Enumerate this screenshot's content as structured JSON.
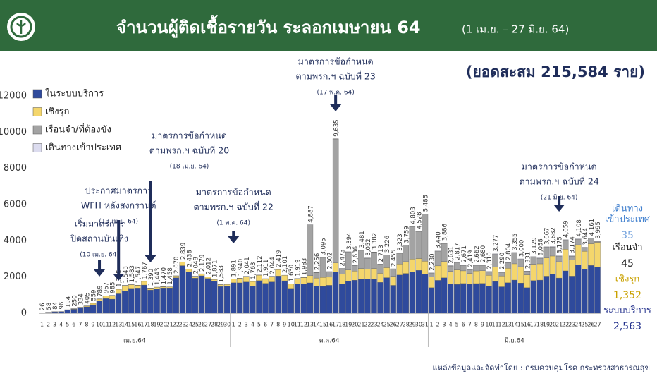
{
  "chart_data": {
    "type": "stacked-bar",
    "title": "จำนวนผู้ติดเชื้อรายวัน ระลอกเมษายน 64",
    "subtitle": "(1 เม.ย. – 27 มิ.ย. 64)",
    "summary": "(ยอดสะสม 215,584 ราย)",
    "source": "แหล่งข้อมูลและจัดทำโดย : กรมควบคุมโรค กระทรวงสาธารณสุข",
    "ylim": [
      0,
      12000
    ],
    "yticks": [
      0,
      2000,
      4000,
      6000,
      8000,
      10000,
      12000
    ],
    "legend": "top-left",
    "months": [
      {
        "label": "เม.ย.64",
        "days": [
          1,
          2,
          3,
          4,
          5,
          6,
          7,
          8,
          9,
          10,
          11,
          12,
          13,
          14,
          15,
          16,
          17,
          18,
          19,
          20,
          21,
          22,
          23,
          24,
          25,
          26,
          27,
          28,
          29,
          30
        ]
      },
      {
        "label": "พ.ค.64",
        "days": [
          1,
          2,
          3,
          4,
          5,
          6,
          7,
          8,
          9,
          10,
          11,
          12,
          13,
          14,
          15,
          16,
          17,
          18,
          19,
          20,
          21,
          22,
          23,
          24,
          25,
          26,
          27,
          28,
          29,
          30,
          31
        ]
      },
      {
        "label": "มิ.ย.64",
        "days": [
          1,
          2,
          3,
          4,
          5,
          6,
          7,
          8,
          9,
          10,
          11,
          12,
          13,
          14,
          15,
          16,
          17,
          18,
          19,
          20,
          21,
          22,
          23,
          24,
          25,
          26,
          27
        ]
      }
    ],
    "series": [
      {
        "name": "ในระบบบริการ",
        "color": "#2f4a9c",
        "values": [
          21,
          48,
          76,
          90,
          184,
          218,
          296,
          355,
          467,
          681,
          807,
          777,
          1073,
          1233,
          1375,
          1391,
          1557,
          1282,
          1351,
          1400,
          1400,
          1960,
          2627,
          2280,
          1938,
          2067,
          1922,
          1783,
          1477,
          1512,
          1681,
          1678,
          1726,
          1503,
          1800,
          1651,
          1729,
          2057,
          1791,
          1372,
          1607,
          1618,
          1677,
          1494,
          1480,
          1542,
          2273,
          1608,
          1784,
          1824,
          1871,
          1887,
          1870,
          1703,
          1964,
          1540,
          2113,
          2197,
          2288,
          2368,
          2173,
          1410,
          1815,
          1956,
          1611,
          1592,
          1641,
          1599,
          1637,
          1650,
          1490,
          1752,
          1460,
          1684,
          1830,
          1670,
          1411,
          1804,
          1828,
          2047,
          2157,
          1945,
          2339,
          2049,
          2678,
          2424,
          2636,
          2563
        ]
      },
      {
        "name": "เชิงรุก",
        "color": "#f4d66c",
        "values": [
          0,
          0,
          0,
          0,
          0,
          20,
          30,
          40,
          80,
          100,
          150,
          200,
          250,
          300,
          200,
          150,
          200,
          100,
          80,
          60,
          50,
          100,
          200,
          150,
          100,
          100,
          80,
          80,
          100,
          80,
          200,
          250,
          300,
          250,
          300,
          250,
          300,
          350,
          300,
          250,
          300,
          350,
          400,
          450,
          500,
          450,
          500,
          550,
          600,
          500,
          600,
          550,
          600,
          500,
          550,
          500,
          600,
          650,
          700,
          650,
          700,
          600,
          800,
          900,
          700,
          800,
          700,
          600,
          700,
          700,
          600,
          800,
          600,
          800,
          900,
          900,
          700,
          900,
          900,
          1000,
          1000,
          900,
          1200,
          900,
          1100,
          1000,
          1200,
          1352
        ]
      },
      {
        "name": "เรือนจำ/ที่ต้องขัง",
        "color": "#a3a3a3",
        "values": [
          0,
          0,
          0,
          0,
          0,
          0,
          0,
          0,
          0,
          0,
          0,
          0,
          0,
          0,
          0,
          0,
          0,
          0,
          0,
          0,
          0,
          0,
          0,
          0,
          0,
          0,
          0,
          0,
          0,
          0,
          0,
          0,
          0,
          0,
          0,
          0,
          0,
          0,
          0,
          0,
          0,
          0,
          2800,
          300,
          1100,
          300,
          6850,
          300,
          1000,
          300,
          1000,
          600,
          900,
          500,
          700,
          400,
          600,
          900,
          1800,
          1500,
          2600,
          200,
          800,
          1000,
          300,
          400,
          300,
          200,
          300,
          300,
          200,
          700,
          200,
          300,
          600,
          400,
          200,
          400,
          300,
          600,
          500,
          300,
          500,
          200,
          300,
          200,
          300,
          45
        ]
      },
      {
        "name": "เดินทางเข้าประเทศ",
        "color": "#dcdcef",
        "values": [
          5,
          10,
          8,
          6,
          10,
          12,
          8,
          10,
          12,
          8,
          10,
          8,
          12,
          10,
          8,
          6,
          10,
          8,
          12,
          10,
          8,
          10,
          12,
          8,
          10,
          12,
          10,
          8,
          6,
          8,
          10,
          12,
          15,
          10,
          12,
          10,
          15,
          12,
          10,
          8,
          12,
          15,
          10,
          12,
          15,
          10,
          12,
          15,
          10,
          12,
          10,
          15,
          12,
          10,
          12,
          15,
          10,
          12,
          15,
          10,
          12,
          20,
          25,
          30,
          20,
          25,
          30,
          20,
          25,
          30,
          20,
          25,
          30,
          20,
          25,
          30,
          20,
          25,
          30,
          20,
          25,
          30,
          20,
          25,
          30,
          20,
          25,
          35
        ]
      }
    ],
    "total_labels": [
      "26",
      "58",
      "84",
      "96",
      "194",
      "250",
      "334",
      "405",
      "559",
      "789",
      "967",
      "985",
      "1,335",
      "1,543",
      "1,583",
      "1,547",
      "1,767",
      "1,390",
      "1,443",
      "1,470",
      "1,458",
      "2,070",
      "2,839",
      "2,438",
      "2,048",
      "2,179",
      "2,012",
      "1,871",
      "1,583",
      null,
      "1,891",
      "1,940",
      "2,041",
      "1,763",
      "2,112",
      "1,911",
      "2,044",
      "2,419",
      "2,101",
      "1,630",
      "1,919",
      "1,983",
      "4,887",
      "2,256",
      "3,095",
      "2,302",
      "9,635",
      "2,473",
      "3,394",
      "2,636",
      "3,481",
      "3,052",
      "3,382",
      "2,713",
      "3,226",
      "2,455",
      "3,323",
      "3,759",
      "4,803",
      "4,528",
      "5,485",
      "2,230",
      "3,440",
      "3,886",
      "2,631",
      "2,817",
      "2,671",
      "2,419",
      "2,662",
      "2,680",
      "2,310",
      "3,277",
      "2,290",
      "2,804",
      "3,355",
      "3,000",
      "2,331",
      "3,129",
      "3,058",
      "3,667",
      "3,682",
      "3,175",
      "4,059",
      "3,174",
      "4,108",
      "3,644",
      "4,161",
      "3,995"
    ],
    "end_labels": [
      {
        "title": [
          "เดินทาง",
          "เข้าประเทศ"
        ],
        "label": "35"
      },
      {
        "title": [
          "เรือนจำ"
        ],
        "label": "45"
      },
      {
        "title": [
          "เชิงรุก"
        ],
        "label": "1,352"
      },
      {
        "title": [
          "ระบบบริการ"
        ],
        "label": "2,563"
      }
    ],
    "annotations": [
      {
        "lines": [
          "เริ่มมาตรการ",
          "ปิดสถานบันเทิง"
        ],
        "date": "(10 เม.ย. 64)"
      },
      {
        "lines": [
          "ประกาศมาตรการ",
          "WFH หลังสงกรานต์"
        ],
        "date": "(13 เม.ย. 64)"
      },
      {
        "lines": [
          "มาตรการข้อกำหนด",
          "ตามพรก.ฯ ฉบับที่ 20"
        ],
        "date": "(18 เม.ย. 64)"
      },
      {
        "lines": [
          "มาตรการข้อกำหนด",
          "ตามพรก.ฯ ฉบับที่ 22"
        ],
        "date": "(1 พ.ค. 64)"
      },
      {
        "lines": [
          "มาตรการข้อกำหนด",
          "ตามพรก.ฯ ฉบับที่ 23"
        ],
        "date": "(17 พ.ค. 64)"
      },
      {
        "lines": [
          "มาตรการข้อกำหนด",
          "ตามพรก.ฯ ฉบับที่ 24"
        ],
        "date": "(21 มิ.ย. 64)"
      }
    ]
  }
}
